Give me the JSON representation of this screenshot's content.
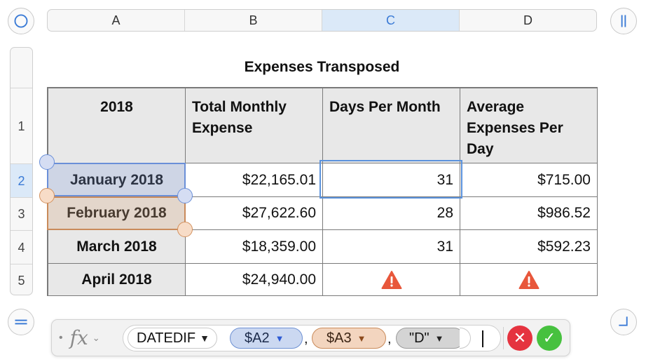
{
  "sheet": {
    "title": "Expenses Transposed",
    "columns": [
      "A",
      "B",
      "C",
      "D"
    ],
    "rows": [
      "1",
      "2",
      "3",
      "4",
      "5"
    ],
    "selected_column": "C",
    "selected_row": "2",
    "header": [
      "2018",
      "Total Monthly Expense",
      "Days Per Month",
      "Average Expenses Per Day"
    ],
    "body": [
      [
        "January 2018",
        "$22,165.01",
        "31",
        "$715.00"
      ],
      [
        "February 2018",
        "$27,622.60",
        "28",
        "$986.52"
      ],
      [
        "March 2018",
        "$18,359.00",
        "31",
        "$592.23"
      ],
      [
        "April 2018",
        "$24,940.00",
        "",
        ""
      ]
    ],
    "warning_icon": "warning-triangle-icon"
  },
  "formula_bar": {
    "dot": "•",
    "fx_label": "fx",
    "chevron": "⌄",
    "function_name": "DATEDIF",
    "function_arrow": "▼",
    "arg1": "$A2",
    "arg2": "$A3",
    "arg3": "\"D\"",
    "separator": ",",
    "cancel_glyph": "✕",
    "accept_glyph": "✓"
  },
  "colors": {
    "accent_blue": "#3b7bd6",
    "reference_blue": "#6a8fd8",
    "reference_orange": "#c98a5a",
    "warning": "#e8573b",
    "cancel": "#e5333f",
    "accept": "#47c13f"
  }
}
